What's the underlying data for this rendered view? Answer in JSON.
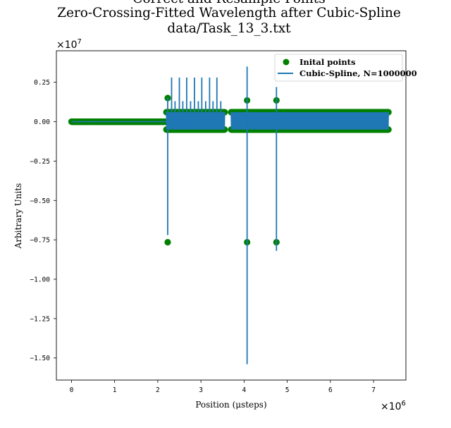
{
  "chart_data": {
    "type": "scatter",
    "title_lines": [
      "Correct and Resample Points",
      "Zero-Crossing-Fitted Wavelength after Cubic-Spline",
      "data/Task_13_3.txt"
    ],
    "xlabel": "Position (μsteps)",
    "ylabel": "Arbitrary Units",
    "x_offset_label": "×10",
    "x_offset_exp": "6",
    "y_offset_label": "×10",
    "y_offset_exp": "7",
    "xlim": [
      -0.35,
      7.75
    ],
    "ylim": [
      -1.64,
      0.45
    ],
    "x_ticks": [
      0,
      1,
      2,
      3,
      4,
      5,
      6,
      7
    ],
    "x_tick_labels": [
      "0",
      "1",
      "2",
      "3",
      "4",
      "5",
      "6",
      "7"
    ],
    "y_ticks": [
      0.25,
      0.0,
      -0.25,
      -0.5,
      -0.75,
      -1.0,
      -1.25,
      -1.5
    ],
    "y_tick_labels": [
      "0.25",
      "0.00",
      "−0.25",
      "−0.50",
      "−0.75",
      "−1.00",
      "−1.25",
      "−1.50"
    ],
    "grid": false,
    "legend_position": "top-right",
    "series": [
      {
        "name": "Inital points",
        "kind": "markers",
        "color": "#008000",
        "segments": [
          {
            "x_start": 0.0,
            "x_end": 2.2,
            "y_min": 0.0,
            "y_max": 0.0
          },
          {
            "x_start": 2.2,
            "x_end": 3.55,
            "y_min": -0.05,
            "y_max": 0.06
          },
          {
            "x_start": 3.7,
            "x_end": 7.35,
            "y_min": -0.05,
            "y_max": 0.06
          }
        ],
        "points": [
          [
            2.23,
            0.15
          ],
          [
            2.23,
            -0.765
          ],
          [
            4.07,
            0.135
          ],
          [
            4.07,
            -0.765
          ],
          [
            4.75,
            0.135
          ],
          [
            4.75,
            -0.765
          ]
        ]
      },
      {
        "name": "Cubic-Spline, N=1000000",
        "kind": "line",
        "color": "#1f77b4",
        "segments": [
          {
            "x_start": 0.0,
            "x_end": 2.2,
            "y_min": 0.0,
            "y_max": 0.0
          },
          {
            "x_start": 2.2,
            "x_end": 3.55,
            "y_min": -0.05,
            "y_max": 0.06
          },
          {
            "x_start": 3.7,
            "x_end": 7.35,
            "y_min": -0.05,
            "y_max": 0.06
          }
        ],
        "spikes": [
          {
            "x": 2.23,
            "y_top": 0.15,
            "y_bottom": -0.72
          },
          {
            "x": 2.32,
            "y_top": 0.28,
            "y_bottom": -0.02
          },
          {
            "x": 2.5,
            "y_top": 0.28,
            "y_bottom": -0.02
          },
          {
            "x": 2.67,
            "y_top": 0.28,
            "y_bottom": -0.02
          },
          {
            "x": 2.85,
            "y_top": 0.28,
            "y_bottom": -0.02
          },
          {
            "x": 3.02,
            "y_top": 0.28,
            "y_bottom": -0.02
          },
          {
            "x": 3.2,
            "y_top": 0.28,
            "y_bottom": -0.02
          },
          {
            "x": 3.37,
            "y_top": 0.28,
            "y_bottom": -0.02
          },
          {
            "x": 2.4,
            "y_top": 0.13,
            "y_bottom": -0.02
          },
          {
            "x": 2.58,
            "y_top": 0.13,
            "y_bottom": -0.02
          },
          {
            "x": 2.76,
            "y_top": 0.13,
            "y_bottom": -0.02
          },
          {
            "x": 2.94,
            "y_top": 0.13,
            "y_bottom": -0.02
          },
          {
            "x": 3.11,
            "y_top": 0.13,
            "y_bottom": -0.02
          },
          {
            "x": 3.28,
            "y_top": 0.13,
            "y_bottom": -0.02
          },
          {
            "x": 3.46,
            "y_top": 0.13,
            "y_bottom": -0.02
          },
          {
            "x": 4.07,
            "y_top": 0.35,
            "y_bottom": -1.54
          },
          {
            "x": 4.75,
            "y_top": 0.22,
            "y_bottom": -0.82
          }
        ]
      }
    ]
  }
}
